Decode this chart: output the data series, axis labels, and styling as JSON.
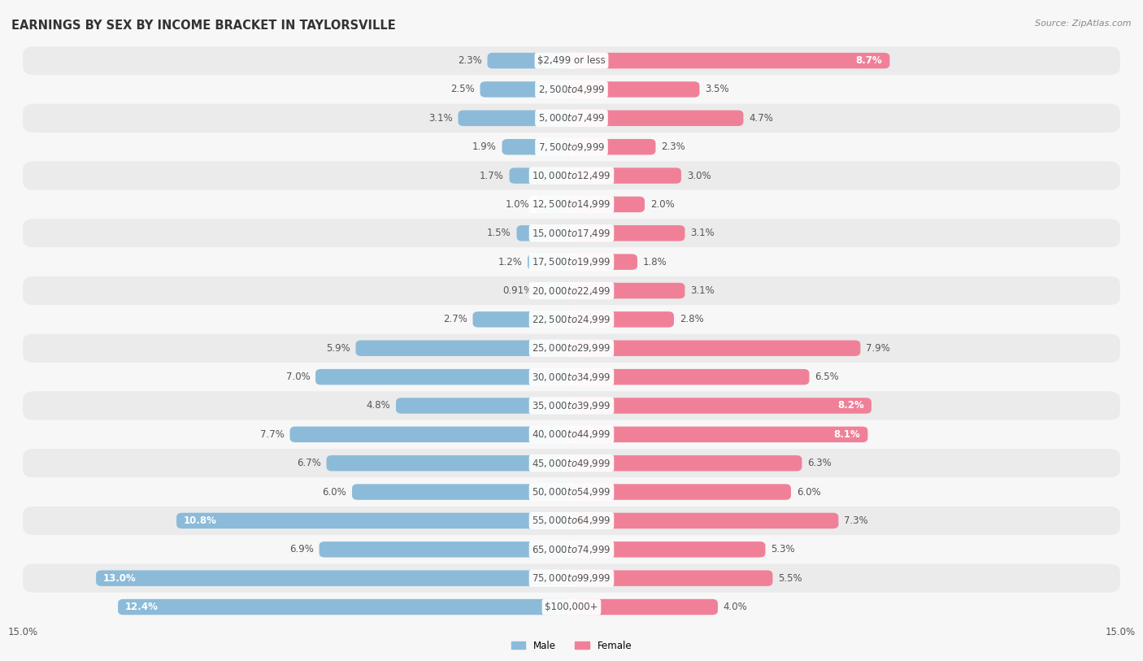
{
  "title": "EARNINGS BY SEX BY INCOME BRACKET IN TAYLORSVILLE",
  "source": "Source: ZipAtlas.com",
  "categories": [
    "$2,499 or less",
    "$2,500 to $4,999",
    "$5,000 to $7,499",
    "$7,500 to $9,999",
    "$10,000 to $12,499",
    "$12,500 to $14,999",
    "$15,000 to $17,499",
    "$17,500 to $19,999",
    "$20,000 to $22,499",
    "$22,500 to $24,999",
    "$25,000 to $29,999",
    "$30,000 to $34,999",
    "$35,000 to $39,999",
    "$40,000 to $44,999",
    "$45,000 to $49,999",
    "$50,000 to $54,999",
    "$55,000 to $64,999",
    "$65,000 to $74,999",
    "$75,000 to $99,999",
    "$100,000+"
  ],
  "male_values": [
    2.3,
    2.5,
    3.1,
    1.9,
    1.7,
    1.0,
    1.5,
    1.2,
    0.91,
    2.7,
    5.9,
    7.0,
    4.8,
    7.7,
    6.7,
    6.0,
    10.8,
    6.9,
    13.0,
    12.4
  ],
  "female_values": [
    8.7,
    3.5,
    4.7,
    2.3,
    3.0,
    2.0,
    3.1,
    1.8,
    3.1,
    2.8,
    7.9,
    6.5,
    8.2,
    8.1,
    6.3,
    6.0,
    7.3,
    5.3,
    5.5,
    4.0
  ],
  "male_color": "#8bbbd9",
  "female_color": "#f08098",
  "male_label": "Male",
  "female_label": "Female",
  "xlim": 15.0,
  "bar_height": 0.55,
  "row_colors": [
    "#ebebeb",
    "#f7f7f7"
  ],
  "fig_bg": "#f7f7f7",
  "title_fontsize": 10.5,
  "label_fontsize": 8.5,
  "tick_fontsize": 8.5,
  "source_fontsize": 8,
  "inside_label_threshold": 8.0,
  "center_label_color": "#555555",
  "value_label_color": "#555555",
  "inside_value_color": "#ffffff"
}
